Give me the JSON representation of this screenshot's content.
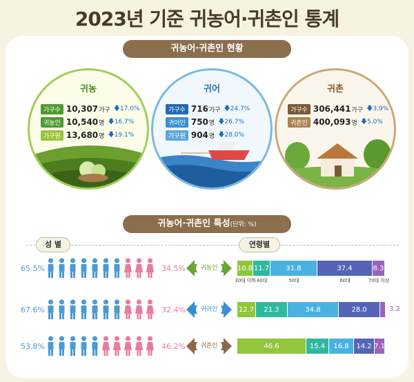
{
  "title": "2023년 기준 귀농어·귀촌인 통계",
  "status_section": "귀농어·귀촌인 현황",
  "char_section": "귀농어·귀촌인 특성",
  "char_unit": "(단위: %)",
  "gender_label": "성 별",
  "age_label": "연령별",
  "farm": {
    "title": "귀농",
    "rows": [
      {
        "label": "가구수",
        "value": "10,307",
        "unit": "가구",
        "change": "17.0%"
      },
      {
        "label": "귀농인",
        "value": "10,540",
        "unit": "명",
        "change": "16.7%"
      },
      {
        "label": "가구원",
        "value": "13,680",
        "unit": "명",
        "change": "19.1%"
      }
    ]
  },
  "fish": {
    "title": "귀어",
    "rows": [
      {
        "label": "가구수",
        "value": "716",
        "unit": "가구",
        "change": "24.7%"
      },
      {
        "label": "귀어인",
        "value": "750",
        "unit": "명",
        "change": "26.7%"
      },
      {
        "label": "가구원",
        "value": "904",
        "unit": "명",
        "change": "28.0%"
      }
    ]
  },
  "rural": {
    "title": "귀촌",
    "rows": [
      {
        "label": "가구수",
        "value": "306,441",
        "unit": "가구",
        "change": "3.9%"
      },
      {
        "label": "귀촌인",
        "value": "400,093",
        "unit": "명",
        "change": "5.0%"
      }
    ]
  },
  "characteristics": [
    {
      "name": "귀농인",
      "male": "65.5%",
      "female": "34.5%",
      "male_count": 7,
      "female_count": 3,
      "ages": [
        "10.8",
        "11.7",
        "31.8",
        "37.4",
        "8.3"
      ],
      "shares": [
        10.8,
        11.7,
        31.8,
        37.4,
        8.3
      ]
    },
    {
      "name": "귀어인",
      "male": "67.6%",
      "female": "32.4%",
      "male_count": 7,
      "female_count": 3,
      "ages": [
        "12.7",
        "21.3",
        "34.8",
        "28.0",
        "3.2"
      ],
      "shares": [
        12.7,
        21.3,
        34.8,
        28.0,
        3.2
      ]
    },
    {
      "name": "귀촌인",
      "male": "53.8%",
      "female": "46.2%",
      "male_count": 5,
      "female_count": 5,
      "ages": [
        "46.6",
        "15.4",
        "16.8",
        "14.2",
        "7.1"
      ],
      "shares": [
        46.6,
        15.4,
        16.8,
        14.2,
        7.1
      ]
    }
  ],
  "age_groups": [
    "30대 이하",
    "40대",
    "50대",
    "60대",
    "70대 이상"
  ],
  "colors": {
    "male": "#4a9bd4",
    "female": "#e87ba0",
    "farm_arrow": "#6aa636",
    "fish_arrow": "#3a8fd0",
    "rural_arrow": "#8a6a4a",
    "age": [
      "#8fc63c",
      "#2fb8a0",
      "#4ab2e0",
      "#5564b8",
      "#9a63b8"
    ]
  }
}
